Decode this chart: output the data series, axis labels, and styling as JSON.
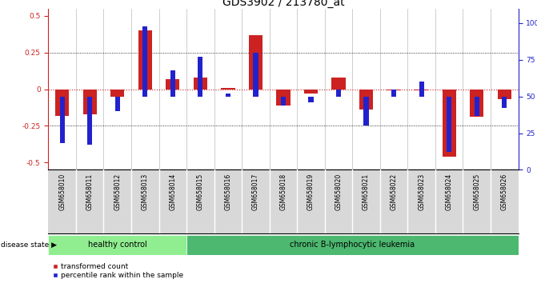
{
  "title": "GDS3902 / 213780_at",
  "samples": [
    "GSM658010",
    "GSM658011",
    "GSM658012",
    "GSM658013",
    "GSM658014",
    "GSM658015",
    "GSM658016",
    "GSM658017",
    "GSM658018",
    "GSM658019",
    "GSM658020",
    "GSM658021",
    "GSM658022",
    "GSM658023",
    "GSM658024",
    "GSM658025",
    "GSM658026"
  ],
  "red_values": [
    -0.18,
    -0.17,
    -0.05,
    0.4,
    0.07,
    0.08,
    0.01,
    0.37,
    -0.11,
    -0.03,
    0.08,
    -0.14,
    -0.01,
    -0.01,
    -0.46,
    -0.19,
    -0.07
  ],
  "blue_values": [
    18,
    17,
    40,
    98,
    68,
    77,
    52,
    80,
    44,
    46,
    55,
    30,
    55,
    60,
    12,
    37,
    42
  ],
  "group_labels": [
    "healthy control",
    "chronic B-lymphocytic leukemia"
  ],
  "healthy_count": 5,
  "group_colors": [
    "#90ee90",
    "#4db870"
  ],
  "disease_state_label": "disease state",
  "legend_red": "transformed count",
  "legend_blue": "percentile rank within the sample",
  "ylim_left": [
    -0.55,
    0.55
  ],
  "ylim_right": [
    0,
    110
  ],
  "yticks_left": [
    -0.5,
    -0.25,
    0.0,
    0.25,
    0.5
  ],
  "ytick_labels_left": [
    "-0.5",
    "-0.25",
    "0",
    "0.25",
    "0.5"
  ],
  "yticks_right": [
    0,
    25,
    50,
    75,
    100
  ],
  "ytick_labels_right": [
    "0",
    "25",
    "50",
    "75",
    "100%"
  ],
  "hline_value": 0.0,
  "dotted_lines": [
    -0.25,
    0.25
  ],
  "red_bar_width": 0.5,
  "blue_bar_width": 0.18,
  "red_color": "#cc2222",
  "blue_color": "#2222cc",
  "bg_plot": "#ffffff",
  "title_fontsize": 10,
  "tick_fontsize": 6.5,
  "label_fontsize": 7.5
}
